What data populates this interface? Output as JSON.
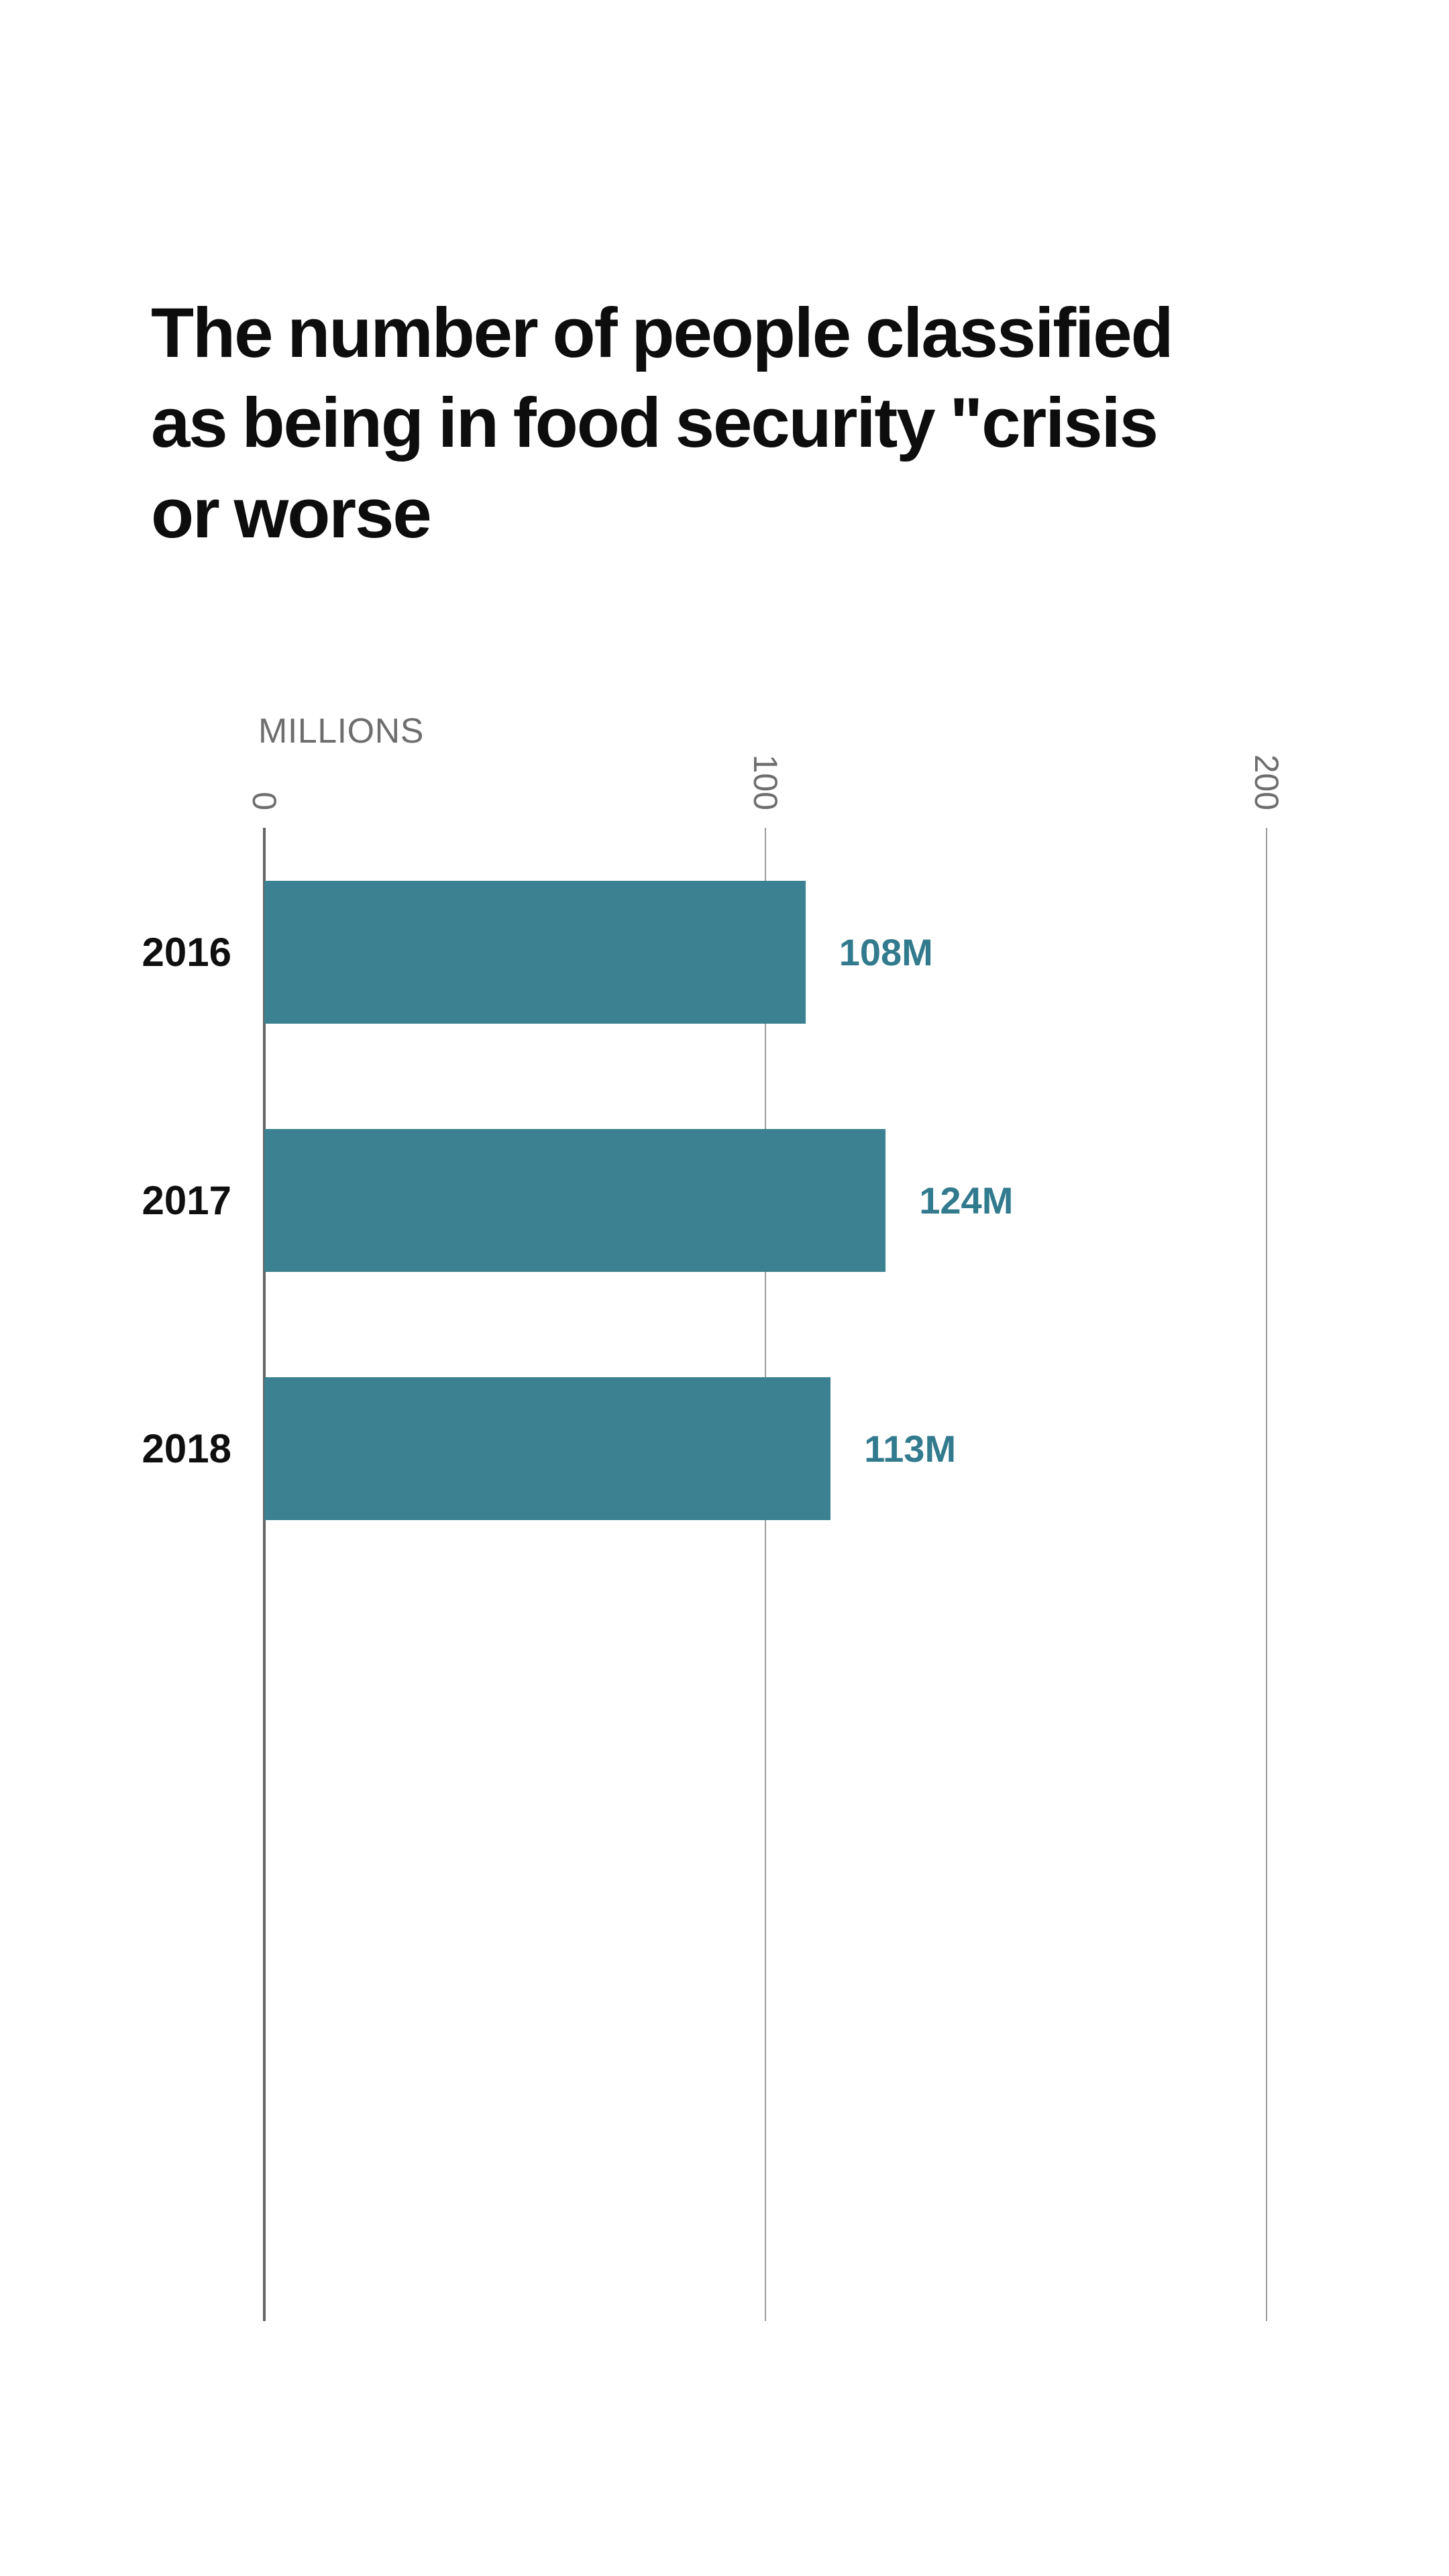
{
  "page": {
    "background": "#ffffff"
  },
  "title_lines": [
    "The number of people classified",
    "as being in food security \"crisis",
    "or worse"
  ],
  "chart_data": {
    "type": "bar",
    "orientation": "horizontal",
    "title": "The number of people classified as being in food security \"crisis or worse",
    "unit_label": "MILLIONS",
    "categories": [
      "2016",
      "2017",
      "2018"
    ],
    "values": [
      108,
      124,
      113
    ],
    "value_labels": [
      "108M",
      "124M",
      "113M"
    ],
    "xlabel": "MILLIONS",
    "ylabel": "",
    "xlim": [
      0,
      200
    ],
    "xticks": [
      0,
      100,
      200
    ],
    "grid": true,
    "legend": "none",
    "colors": {
      "bar": "#3b8191",
      "value_label": "#327a8d",
      "category_label": "#0f0f0f",
      "title": "#0d0d0d",
      "axis_line": "#656565",
      "gridline": "#9c9c9c",
      "tick_label": "#6e6e6e",
      "background": "#ffffff"
    }
  }
}
